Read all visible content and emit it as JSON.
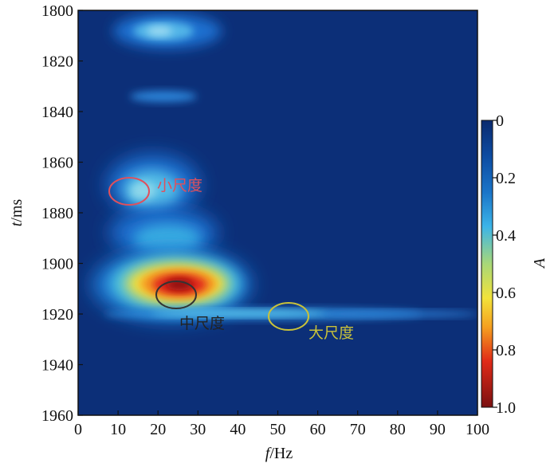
{
  "chart_data": {
    "type": "heatmap",
    "xlabel_var": "f",
    "xlabel_unit": "/Hz",
    "ylabel_var": "t",
    "ylabel_unit": "/ms",
    "xlim": [
      0,
      100
    ],
    "ylim": [
      1800,
      1960
    ],
    "y_inverted": true,
    "x_ticks": [
      0,
      10,
      20,
      30,
      40,
      50,
      60,
      70,
      80,
      90,
      100
    ],
    "y_ticks": [
      1800,
      1820,
      1840,
      1860,
      1880,
      1900,
      1920,
      1940,
      1960
    ],
    "colorbar": {
      "label": "A",
      "range": [
        0,
        1.0
      ],
      "ticks": [
        0,
        0.2,
        0.4,
        0.6,
        0.8,
        1.0
      ],
      "tick_labels": [
        "0",
        "0.2",
        "0.4",
        "0.6",
        "0.8",
        "1.0"
      ],
      "colormap": "jet",
      "direction": "top-to-bottom"
    },
    "background_amplitude": 0.05,
    "energy_regions": [
      {
        "f": 21,
        "t": 1808,
        "amplitude": 0.3
      },
      {
        "f": 21,
        "t": 1833,
        "amplitude": 0.2
      },
      {
        "f": 21,
        "t": 1873,
        "amplitude": 0.35
      },
      {
        "f": 16,
        "t": 1875,
        "amplitude": 0.25
      },
      {
        "f": 24,
        "t": 1893,
        "amplitude": 0.25
      },
      {
        "f": 25,
        "t": 1909,
        "amplitude": 0.95
      },
      {
        "f": 45,
        "t": 1919,
        "amplitude": 0.25
      },
      {
        "f": 80,
        "t": 1920,
        "amplitude": 0.15
      }
    ],
    "annotations": [
      {
        "text": "小尺度",
        "f": 13,
        "t": 1872,
        "color": "#e0505c"
      },
      {
        "text": "中尺度",
        "f": 25,
        "t": 1912,
        "color": "#333333"
      },
      {
        "text": "大尺度",
        "f": 52,
        "t": 1921,
        "color": "#c9c23a"
      }
    ]
  }
}
